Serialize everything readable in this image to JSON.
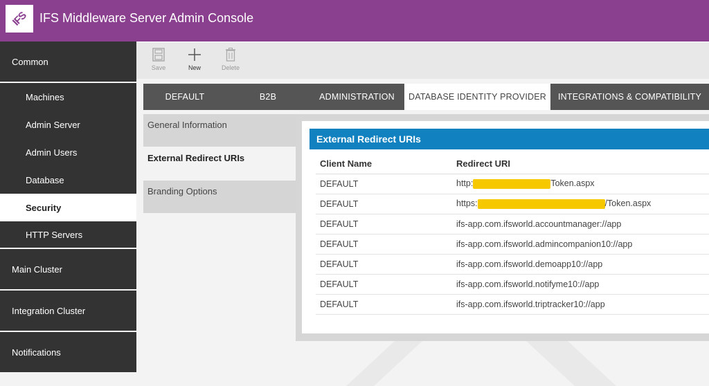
{
  "header": {
    "logo_text": "IFS",
    "title": "IFS Middleware Server Admin Console"
  },
  "sidebar": {
    "groups": [
      {
        "label": "Common"
      },
      {
        "label": "Main Cluster"
      },
      {
        "label": "Integration Cluster"
      },
      {
        "label": "Notifications"
      }
    ],
    "items": [
      {
        "label": "Machines"
      },
      {
        "label": "Admin Server"
      },
      {
        "label": "Admin Users"
      },
      {
        "label": "Database"
      },
      {
        "label": "Security",
        "active": true
      },
      {
        "label": "HTTP Servers"
      }
    ]
  },
  "toolbar": {
    "save_label": "Save",
    "new_label": "New",
    "delete_label": "Delete"
  },
  "tabs": [
    {
      "label": "DEFAULT"
    },
    {
      "label": "B2B"
    },
    {
      "label": "ADMINISTRATION"
    },
    {
      "label": "DATABASE IDENTITY PROVIDER",
      "active": true
    },
    {
      "label": "INTEGRATIONS & COMPATIBILITY"
    }
  ],
  "subnav": [
    {
      "label": "General Information"
    },
    {
      "label": "External Redirect URIs",
      "active": true
    },
    {
      "label": "Branding Options"
    }
  ],
  "panel": {
    "title": "External Redirect URIs",
    "columns": [
      "Client Name",
      "Redirect URI"
    ],
    "rows": [
      {
        "client": "DEFAULT",
        "uri_prefix": "http:",
        "uri_suffix": "Token.aspx",
        "redacted": true
      },
      {
        "client": "DEFAULT",
        "uri_prefix": "https:",
        "uri_suffix": "/Token.aspx",
        "redacted": true
      },
      {
        "client": "DEFAULT",
        "uri": "ifs-app.com.ifsworld.accountmanager://app"
      },
      {
        "client": "DEFAULT",
        "uri": "ifs-app.com.ifsworld.admincompanion10://app"
      },
      {
        "client": "DEFAULT",
        "uri": "ifs-app.com.ifsworld.demoapp10://app"
      },
      {
        "client": "DEFAULT",
        "uri": "ifs-app.com.ifsworld.notifyme10://app"
      },
      {
        "client": "DEFAULT",
        "uri": "ifs-app.com.ifsworld.triptracker10://app"
      }
    ]
  },
  "colors": {
    "header": "#8a3f8f",
    "sidebar": "#333333",
    "panel_title": "#1281c0",
    "redaction": "#f5c800"
  }
}
